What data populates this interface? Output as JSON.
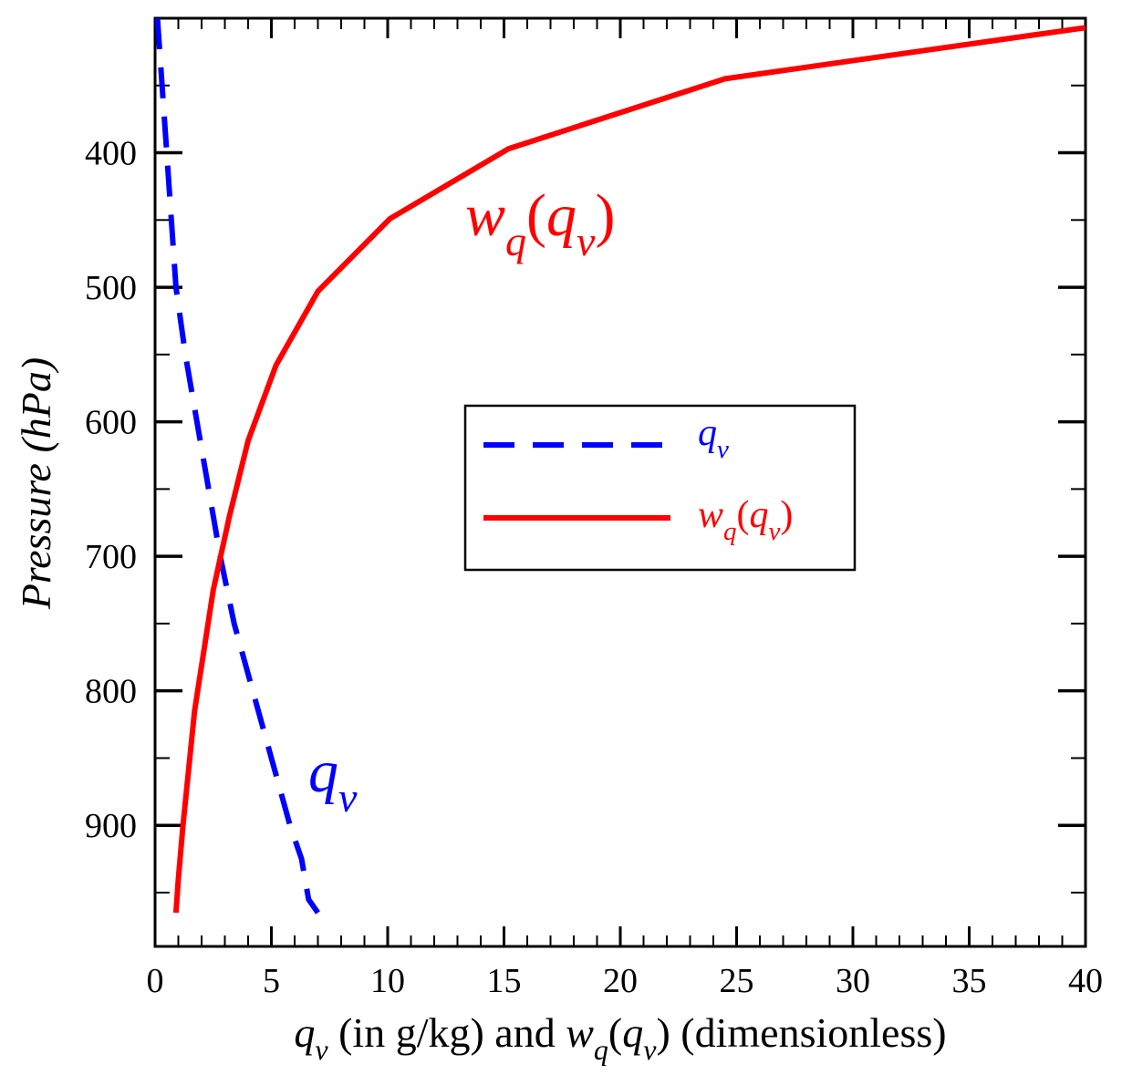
{
  "chart_data": {
    "type": "line",
    "title": "",
    "xlabel": {
      "main": "q",
      "main_sub": "v",
      "mid": " (in g/kg) and ",
      "w": "w",
      "w_sub": "q",
      "open": "(",
      "inner": "q",
      "inner_sub": "v",
      "close": ")",
      "tail": " (dimensionless)"
    },
    "ylabel": "Pressure (hPa)",
    "xlim": [
      0,
      40
    ],
    "ylim": [
      300,
      990
    ],
    "y_inverted": true,
    "x_ticks": [
      0,
      5,
      10,
      15,
      20,
      25,
      30,
      35,
      40
    ],
    "x_tick_labels": [
      "0",
      "5",
      "10",
      "15",
      "20",
      "25",
      "30",
      "35",
      "40"
    ],
    "x_minor_step": 1,
    "y_ticks": [
      400,
      500,
      600,
      700,
      800,
      900
    ],
    "y_tick_labels": [
      "400",
      "500",
      "600",
      "700",
      "800",
      "900"
    ],
    "y_minor_step": 50,
    "series": [
      {
        "name": "q_v",
        "color": "#0000ff",
        "dash": "dashed",
        "x": [
          0.1,
          0.3,
          0.5,
          0.9,
          1.3,
          1.8,
          2.3,
          2.8,
          3.4,
          4.2,
          5.0,
          5.8,
          6.3,
          6.6,
          7.0
        ],
        "y": [
          300,
          350,
          400,
          500,
          550,
          600,
          650,
          700,
          750,
          800,
          850,
          900,
          925,
          955,
          965
        ]
      },
      {
        "name": "w_q(q_v)",
        "color": "#ff0000",
        "dash": "solid",
        "x": [
          40.0,
          24.5,
          15.2,
          10.1,
          7.0,
          5.2,
          4.0,
          3.2,
          2.5,
          1.7,
          1.2,
          1.0,
          0.9
        ],
        "y": [
          307,
          345,
          397,
          449,
          503,
          558,
          614,
          670,
          725,
          815,
          900,
          940,
          965
        ]
      }
    ],
    "annotations": [
      {
        "series": "w_q(q_v)",
        "color": "#ff0000",
        "base": "w",
        "base_sub": "q",
        "open": "(",
        "inner": "q",
        "inner_sub": "v",
        "close": ")"
      },
      {
        "series": "q_v",
        "color": "#0000ff",
        "base": "q",
        "base_sub": "v"
      }
    ],
    "legend": {
      "position": "center",
      "entries": [
        {
          "series": "q_v",
          "color": "#0000ff",
          "dash": "dashed",
          "base": "q",
          "base_sub": "v"
        },
        {
          "series": "w_q(q_v)",
          "color": "#ff0000",
          "dash": "solid",
          "base": "w",
          "base_sub": "q",
          "open": "(",
          "inner": "q",
          "inner_sub": "v",
          "close": ")"
        }
      ]
    }
  }
}
